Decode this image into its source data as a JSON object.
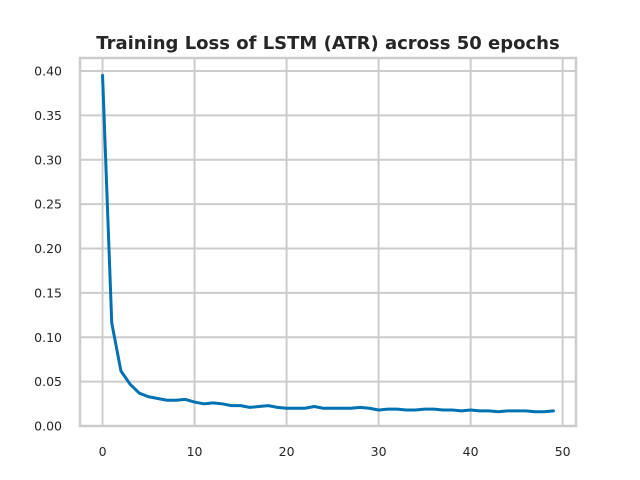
{
  "chart_data": {
    "type": "line",
    "title": "Training Loss of LSTM (ATR) across 50 epochs",
    "xlabel": "",
    "ylabel": "",
    "xlim": [
      -2.45,
      51.45
    ],
    "ylim": [
      0.0,
      0.4147
    ],
    "x_ticks": [
      0,
      10,
      20,
      30,
      40,
      50
    ],
    "x_tick_labels": [
      "0",
      "10",
      "20",
      "30",
      "40",
      "50"
    ],
    "y_ticks": [
      0.0,
      0.05,
      0.1,
      0.15,
      0.2,
      0.25,
      0.3,
      0.35,
      0.4
    ],
    "y_tick_labels": [
      "0.00",
      "0.05",
      "0.10",
      "0.15",
      "0.20",
      "0.25",
      "0.30",
      "0.35",
      "0.40"
    ],
    "grid": true,
    "series": [
      {
        "name": "Training Loss",
        "color": "#0072b2",
        "x": [
          0,
          1,
          2,
          3,
          4,
          5,
          6,
          7,
          8,
          9,
          10,
          11,
          12,
          13,
          14,
          15,
          16,
          17,
          18,
          19,
          20,
          21,
          22,
          23,
          24,
          25,
          26,
          27,
          28,
          29,
          30,
          31,
          32,
          33,
          34,
          35,
          36,
          37,
          38,
          39,
          40,
          41,
          42,
          43,
          44,
          45,
          46,
          47,
          48,
          49
        ],
        "y": [
          0.395,
          0.116,
          0.062,
          0.047,
          0.037,
          0.033,
          0.031,
          0.029,
          0.029,
          0.03,
          0.027,
          0.025,
          0.026,
          0.025,
          0.023,
          0.023,
          0.021,
          0.022,
          0.023,
          0.021,
          0.02,
          0.02,
          0.02,
          0.022,
          0.02,
          0.02,
          0.02,
          0.02,
          0.021,
          0.02,
          0.018,
          0.019,
          0.019,
          0.018,
          0.018,
          0.019,
          0.019,
          0.018,
          0.018,
          0.017,
          0.018,
          0.017,
          0.017,
          0.016,
          0.017,
          0.017,
          0.017,
          0.016,
          0.016,
          0.017
        ]
      }
    ]
  }
}
